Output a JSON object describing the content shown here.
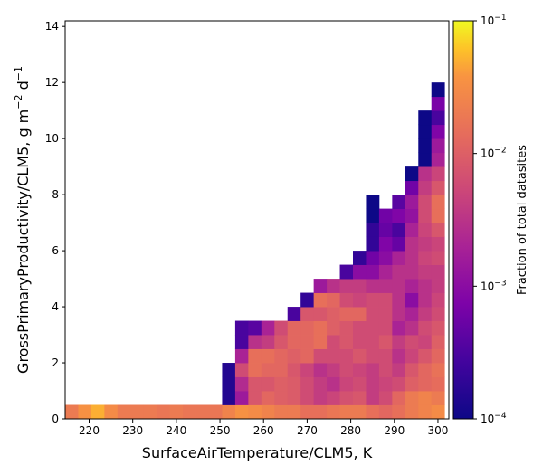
{
  "chart_data": {
    "type": "heatmap",
    "xlabel": "SurfaceAirTemperature/CLM5,  K",
    "ylabel": "GrossPrimaryProductivity/CLM5,  g m",
    "ylabel_sup1": "−2",
    "ylabel_mid": " d",
    "ylabel_sup2": "−1",
    "colorbar_label": "Fraction of total datasites",
    "colorbar_scale": "log",
    "colorbar_range": [
      0.0001,
      0.1
    ],
    "colorbar_ticks": [
      {
        "value": 0.0001,
        "base": "10",
        "exp": "−4"
      },
      {
        "value": 0.001,
        "base": "10",
        "exp": "−3"
      },
      {
        "value": 0.01,
        "base": "10",
        "exp": "−2"
      },
      {
        "value": 0.1,
        "base": "10",
        "exp": "−1"
      }
    ],
    "colormap": "plasma",
    "xlim": [
      214.5,
      302.5
    ],
    "ylim": [
      0,
      14.2
    ],
    "xticks": [
      220,
      230,
      240,
      250,
      260,
      270,
      280,
      290,
      300
    ],
    "yticks": [
      0,
      2,
      4,
      6,
      8,
      10,
      12,
      14
    ],
    "x_bin_edges": [
      214.5,
      217.5,
      220.5,
      223.5,
      226.5,
      229.5,
      232.5,
      235.5,
      238.5,
      241.5,
      244.5,
      247.5,
      250.5,
      253.5,
      256.5,
      259.5,
      262.5,
      265.5,
      268.5,
      271.5,
      274.5,
      277.5,
      280.5,
      283.5,
      286.5,
      289.5,
      292.5,
      295.5,
      298.5,
      301.5
    ],
    "y_bin_edges": [
      0,
      0.5,
      1,
      1.5,
      2,
      2.5,
      3,
      3.5,
      4,
      4.5,
      5,
      5.5,
      6,
      6.5,
      7,
      7.5,
      8,
      8.5,
      9,
      9.5,
      10,
      10.5,
      11,
      11.5,
      12
    ],
    "values": [
      [
        0.02,
        0.035,
        0.05,
        0.03,
        0.02,
        0.02,
        0.02,
        0.018,
        0.02,
        0.018,
        0.018,
        0.018,
        0.025,
        0.035,
        0.03,
        0.025,
        0.02,
        0.02,
        0.015,
        0.015,
        0.018,
        0.02,
        0.02,
        0.015,
        0.012,
        0.015,
        0.02,
        0.025,
        0.03
      ],
      [
        null,
        null,
        null,
        null,
        null,
        null,
        null,
        null,
        null,
        null,
        null,
        null,
        0.00015,
        0.0015,
        0.008,
        0.012,
        0.01,
        0.009,
        0.006,
        0.004,
        0.005,
        0.007,
        0.008,
        0.004,
        0.006,
        0.012,
        0.02,
        0.025,
        0.02
      ],
      [
        null,
        null,
        null,
        null,
        null,
        null,
        null,
        null,
        null,
        null,
        null,
        null,
        0.00015,
        0.0025,
        0.008,
        0.008,
        0.01,
        0.009,
        0.006,
        0.004,
        0.003,
        0.005,
        0.006,
        0.004,
        0.005,
        0.006,
        0.01,
        0.012,
        0.014
      ],
      [
        null,
        null,
        null,
        null,
        null,
        null,
        null,
        null,
        null,
        null,
        null,
        null,
        0.00015,
        0.006,
        0.015,
        0.012,
        0.012,
        0.008,
        0.005,
        0.003,
        0.004,
        0.006,
        0.005,
        0.004,
        0.006,
        0.004,
        0.008,
        0.012,
        0.016
      ],
      [
        null,
        null,
        null,
        null,
        null,
        null,
        null,
        null,
        null,
        null,
        null,
        null,
        null,
        0.002,
        0.015,
        0.015,
        0.012,
        0.01,
        0.012,
        0.006,
        0.006,
        0.006,
        0.008,
        0.006,
        0.006,
        0.003,
        0.005,
        0.008,
        0.012
      ],
      [
        null,
        null,
        null,
        null,
        null,
        null,
        null,
        null,
        null,
        null,
        null,
        null,
        null,
        0.0003,
        0.003,
        0.004,
        0.008,
        0.012,
        0.012,
        0.015,
        0.006,
        0.008,
        0.006,
        0.006,
        0.008,
        0.004,
        0.006,
        0.005,
        0.01
      ],
      [
        null,
        null,
        null,
        null,
        null,
        null,
        null,
        null,
        null,
        null,
        null,
        null,
        null,
        0.0003,
        0.0004,
        0.002,
        0.006,
        0.012,
        0.012,
        0.015,
        0.01,
        0.008,
        0.006,
        0.006,
        0.006,
        0.002,
        0.003,
        0.006,
        0.008
      ],
      [
        null,
        null,
        null,
        null,
        null,
        null,
        null,
        null,
        null,
        null,
        null,
        null,
        null,
        null,
        null,
        null,
        null,
        0.0003,
        0.008,
        0.008,
        0.01,
        0.012,
        0.012,
        0.006,
        0.006,
        0.003,
        0.002,
        0.004,
        0.006
      ],
      [
        null,
        null,
        null,
        null,
        null,
        null,
        null,
        null,
        null,
        null,
        null,
        null,
        null,
        null,
        null,
        null,
        null,
        null,
        0.0002,
        0.015,
        0.012,
        0.006,
        0.005,
        0.006,
        0.006,
        0.003,
        0.001,
        0.003,
        0.005
      ],
      [
        null,
        null,
        null,
        null,
        null,
        null,
        null,
        null,
        null,
        null,
        null,
        null,
        null,
        null,
        null,
        null,
        null,
        null,
        null,
        0.0015,
        0.003,
        0.004,
        0.004,
        0.003,
        0.003,
        0.003,
        0.002,
        0.003,
        0.004
      ],
      [
        null,
        null,
        null,
        null,
        null,
        null,
        null,
        null,
        null,
        null,
        null,
        null,
        null,
        null,
        null,
        null,
        null,
        null,
        null,
        null,
        null,
        0.0003,
        0.001,
        0.001,
        0.002,
        0.003,
        0.003,
        0.004,
        0.004
      ],
      [
        null,
        null,
        null,
        null,
        null,
        null,
        null,
        null,
        null,
        null,
        null,
        null,
        null,
        null,
        null,
        null,
        null,
        null,
        null,
        null,
        null,
        null,
        0.0002,
        0.0006,
        0.001,
        0.002,
        0.003,
        0.005,
        0.006
      ],
      [
        null,
        null,
        null,
        null,
        null,
        null,
        null,
        null,
        null,
        null,
        null,
        null,
        null,
        null,
        null,
        null,
        null,
        null,
        null,
        null,
        null,
        null,
        null,
        0.0002,
        0.0008,
        0.0005,
        0.003,
        0.004,
        0.005
      ],
      [
        null,
        null,
        null,
        null,
        null,
        null,
        null,
        null,
        null,
        null,
        null,
        null,
        null,
        null,
        null,
        null,
        null,
        null,
        null,
        null,
        null,
        null,
        null,
        0.0002,
        0.0005,
        0.0003,
        0.002,
        0.005,
        0.008
      ],
      [
        null,
        null,
        null,
        null,
        null,
        null,
        null,
        null,
        null,
        null,
        null,
        null,
        null,
        null,
        null,
        null,
        null,
        null,
        null,
        null,
        null,
        null,
        null,
        0.0001,
        0.0006,
        0.0008,
        0.0012,
        0.006,
        0.015
      ],
      [
        null,
        null,
        null,
        null,
        null,
        null,
        null,
        null,
        null,
        null,
        null,
        null,
        null,
        null,
        null,
        null,
        null,
        null,
        null,
        null,
        null,
        null,
        null,
        0.0001,
        null,
        0.0004,
        0.0015,
        0.006,
        0.015
      ],
      [
        null,
        null,
        null,
        null,
        null,
        null,
        null,
        null,
        null,
        null,
        null,
        null,
        null,
        null,
        null,
        null,
        null,
        null,
        null,
        null,
        null,
        null,
        null,
        null,
        null,
        null,
        0.0006,
        0.004,
        0.008
      ],
      [
        null,
        null,
        null,
        null,
        null,
        null,
        null,
        null,
        null,
        null,
        null,
        null,
        null,
        null,
        null,
        null,
        null,
        null,
        null,
        null,
        null,
        null,
        null,
        null,
        null,
        null,
        0.0001,
        0.003,
        0.005
      ],
      [
        null,
        null,
        null,
        null,
        null,
        null,
        null,
        null,
        null,
        null,
        null,
        null,
        null,
        null,
        null,
        null,
        null,
        null,
        null,
        null,
        null,
        null,
        null,
        null,
        null,
        null,
        null,
        0.0001,
        0.002
      ],
      [
        null,
        null,
        null,
        null,
        null,
        null,
        null,
        null,
        null,
        null,
        null,
        null,
        null,
        null,
        null,
        null,
        null,
        null,
        null,
        null,
        null,
        null,
        null,
        null,
        null,
        null,
        null,
        0.0001,
        0.0015
      ],
      [
        null,
        null,
        null,
        null,
        null,
        null,
        null,
        null,
        null,
        null,
        null,
        null,
        null,
        null,
        null,
        null,
        null,
        null,
        null,
        null,
        null,
        null,
        null,
        null,
        null,
        null,
        null,
        0.0001,
        0.0008
      ],
      [
        null,
        null,
        null,
        null,
        null,
        null,
        null,
        null,
        null,
        null,
        null,
        null,
        null,
        null,
        null,
        null,
        null,
        null,
        null,
        null,
        null,
        null,
        null,
        null,
        null,
        null,
        null,
        0.0001,
        0.0003
      ],
      [
        null,
        null,
        null,
        null,
        null,
        null,
        null,
        null,
        null,
        null,
        null,
        null,
        null,
        null,
        null,
        null,
        null,
        null,
        null,
        null,
        null,
        null,
        null,
        null,
        null,
        null,
        null,
        null,
        0.0007
      ],
      [
        null,
        null,
        null,
        null,
        null,
        null,
        null,
        null,
        null,
        null,
        null,
        null,
        null,
        null,
        null,
        null,
        null,
        null,
        null,
        null,
        null,
        null,
        null,
        null,
        null,
        null,
        null,
        null,
        0.0001
      ]
    ]
  }
}
